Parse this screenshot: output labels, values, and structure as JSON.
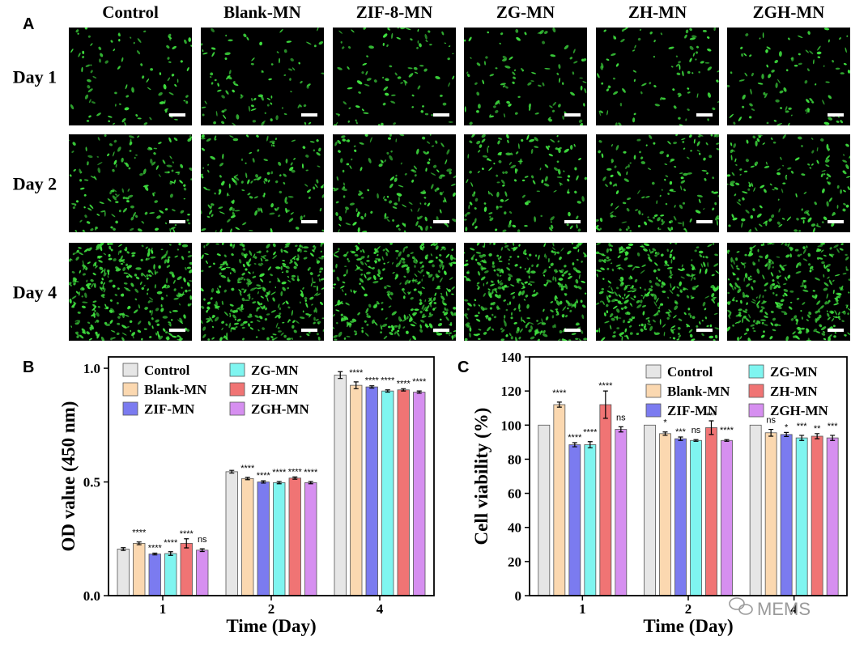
{
  "panels": {
    "a": "A",
    "b": "B",
    "c": "C"
  },
  "micrograph_grid": {
    "columns": [
      "Control",
      "Blank-MN",
      "ZIF-8-MN",
      "ZG-MN",
      "ZH-MN",
      "ZGH-MN"
    ],
    "rows": [
      "Day 1",
      "Day 2",
      "Day 4"
    ],
    "background_color": "#000000",
    "cell_color": "#3fe03f",
    "relative_cell_density": [
      0.28,
      0.45,
      1.0
    ]
  },
  "colors": {
    "Control": "#e6e6e6",
    "Blank-MN": "#fbd8b0",
    "ZIF-MN": "#7b7bf0",
    "ZG-MN": "#7ff5f0",
    "ZH-MN": "#f07474",
    "ZGH-MN": "#d68ff0"
  },
  "chart_data": [
    {
      "type": "bar",
      "xlabel": "Time (Day)",
      "ylabel": "OD value (450 nm)",
      "categories": [
        "1",
        "2",
        "4"
      ],
      "ylim": [
        0,
        1.05
      ],
      "yticks": [
        "0.0",
        "0.5",
        "1.0"
      ],
      "legend_position": "top-left",
      "series": [
        {
          "name": "Control",
          "values": [
            0.205,
            0.545,
            0.97
          ],
          "errors": [
            0.006,
            0.006,
            0.015
          ],
          "sig": [
            "",
            "",
            ""
          ]
        },
        {
          "name": "Blank-MN",
          "values": [
            0.23,
            0.515,
            0.925
          ],
          "errors": [
            0.006,
            0.005,
            0.015
          ],
          "sig": [
            "****",
            "****",
            "****"
          ]
        },
        {
          "name": "ZIF-MN",
          "values": [
            0.183,
            0.5,
            0.918
          ],
          "errors": [
            0.004,
            0.005,
            0.005
          ],
          "sig": [
            "****",
            "****",
            "****"
          ]
        },
        {
          "name": "ZG-MN",
          "values": [
            0.185,
            0.497,
            0.9
          ],
          "errors": [
            0.008,
            0.005,
            0.005
          ],
          "sig": [
            "****",
            "****",
            "****"
          ]
        },
        {
          "name": "ZH-MN",
          "values": [
            0.23,
            0.517,
            0.905
          ],
          "errors": [
            0.02,
            0.005,
            0.005
          ],
          "sig": [
            "****",
            "****",
            "****"
          ]
        },
        {
          "name": "ZGH-MN",
          "values": [
            0.2,
            0.497,
            0.895
          ],
          "errors": [
            0.006,
            0.005,
            0.005
          ],
          "sig": [
            "ns",
            "****",
            "****"
          ]
        }
      ]
    },
    {
      "type": "bar",
      "xlabel": "Time (Day)",
      "ylabel": "Cell viability (%)",
      "categories": [
        "1",
        "2",
        "4"
      ],
      "ylim": [
        0,
        140
      ],
      "yticks": [
        "0",
        "20",
        "40",
        "60",
        "80",
        "100",
        "120",
        "140"
      ],
      "legend_position": "top-right",
      "series": [
        {
          "name": "Control",
          "values": [
            100,
            100,
            100
          ],
          "errors": [
            0,
            0,
            0
          ],
          "sig": [
            "",
            "",
            ""
          ]
        },
        {
          "name": "Blank-MN",
          "values": [
            112,
            95,
            95.5
          ],
          "errors": [
            1.5,
            1.0,
            2.0
          ],
          "sig": [
            "****",
            "*",
            "ns"
          ]
        },
        {
          "name": "ZIF-MN",
          "values": [
            88.5,
            92,
            94.5
          ],
          "errors": [
            1.2,
            1.0,
            1.2
          ],
          "sig": [
            "****",
            "***",
            "*"
          ]
        },
        {
          "name": "ZG-MN",
          "values": [
            88.5,
            91,
            92.5
          ],
          "errors": [
            1.8,
            0.5,
            1.5
          ],
          "sig": [
            "****",
            "ns",
            "***"
          ]
        },
        {
          "name": "ZH-MN",
          "values": [
            112,
            98.5,
            93.5
          ],
          "errors": [
            8.0,
            4.0,
            1.5
          ],
          "sig": [
            "****",
            "***",
            "**"
          ]
        },
        {
          "name": "ZGH-MN",
          "values": [
            97.5,
            91,
            92.5
          ],
          "errors": [
            1.5,
            0.5,
            1.5
          ],
          "sig": [
            "ns",
            "****",
            "***"
          ]
        }
      ]
    }
  ],
  "watermark": {
    "text": "MEMS",
    "icon": "wechat-icon"
  }
}
